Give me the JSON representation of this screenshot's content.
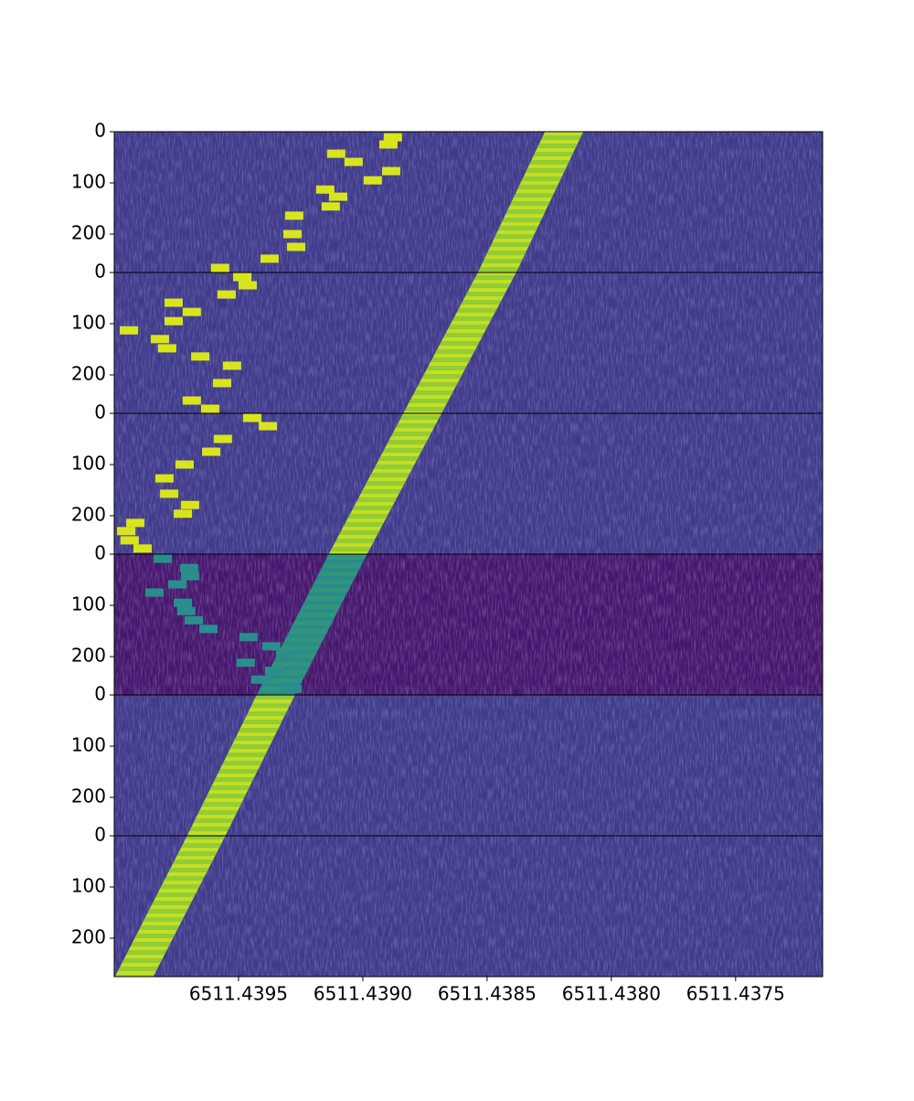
{
  "chart_data": {
    "type": "waterfall",
    "xlim": [
      6511.44,
      6511.43715
    ],
    "xticks": [
      6511.4395,
      {
        "value": 6511.439,
        "label": "6511.4390"
      },
      6511.4385,
      {
        "value": 6511.438,
        "label": "6511.4380"
      },
      6511.4375
    ],
    "ylim": [
      0,
      275
    ],
    "yticks": [
      0,
      100,
      200
    ],
    "band_width": 0.000154,
    "panels": [
      {
        "background": "#3f3a8a",
        "band": [
          6511.43819,
          6511.43846
        ],
        "band_color": "#c2df23",
        "blobs": {
          "x": [
            6511.438879,
            6511.438897,
            6511.439107,
            6511.439037,
            6511.438886,
            6511.43896,
            6511.439151,
            6511.439099,
            6511.439129,
            6511.439276,
            6511.439283,
            6511.439268,
            6511.439375,
            6511.439574
          ],
          "y": [
            11,
            25,
            43,
            59,
            77,
            95,
            113,
            127,
            146,
            164,
            200,
            225,
            248,
            266
          ]
        },
        "blob_color": "#d9e51c"
      },
      {
        "background": "#3f3a8a",
        "band": [
          6511.43846,
          6511.43876
        ],
        "band_color": "#c2df23",
        "blobs": {
          "x": [
            6511.439485,
            6511.439463,
            6511.439548,
            6511.439761,
            6511.439688,
            6511.439761,
            6511.439941,
            6511.439816,
            6511.439787,
            6511.439654,
            6511.439526,
            6511.439566,
            6511.439688,
            6511.439614
          ],
          "y": [
            9,
            25,
            43,
            59,
            77,
            95,
            113,
            130,
            148,
            164,
            182,
            216,
            250,
            266
          ]
        },
        "blob_color": "#d9e51c"
      },
      {
        "background": "#3f3a8a",
        "band": [
          6511.43876,
          6511.43906
        ],
        "band_color": "#c2df23",
        "blobs": {
          "x": [
            6511.439445,
            6511.439382,
            6511.439563,
            6511.43961,
            6511.439717,
            6511.439798,
            6511.439779,
            6511.439695,
            6511.439724,
            6511.439915,
            6511.439952,
            6511.439938,
            6511.439886
          ],
          "y": [
            9,
            25,
            50,
            75,
            100,
            127,
            157,
            179,
            196,
            214,
            230,
            248,
            264
          ]
        },
        "blob_color": "#d9e51c"
      },
      {
        "background": "#46166c",
        "band": [
          6511.43906,
          6511.43935
        ],
        "band_color": "#2a8a8c",
        "blobs": {
          "x": [
            6511.439805,
            6511.439699,
            6511.439695,
            6511.439746,
            6511.439838,
            6511.439724,
            6511.43971,
            6511.43968,
            6511.439621,
            6511.43946,
            6511.439368,
            6511.439313,
            6511.439471,
            6511.439357,
            6511.439412,
            6511.439283
          ],
          "y": [
            9,
            27,
            43,
            59,
            75,
            95,
            111,
            129,
            146,
            162,
            180,
            196,
            212,
            228,
            245,
            263
          ]
        },
        "blob_color": "#2a8f8c"
      },
      {
        "background": "#3f3a8a",
        "band": [
          6511.43935,
          6511.43963
        ],
        "band_color": "#c2df23",
        "blobs": {
          "x": [],
          "y": []
        },
        "blob_color": "#d9e51c"
      },
      {
        "background": "#3f3a8a",
        "band": [
          6511.43963,
          6511.43992
        ],
        "band_color": "#c2df23",
        "blobs": {
          "x": [],
          "y": []
        },
        "blob_color": "#d9e51c"
      }
    ]
  }
}
